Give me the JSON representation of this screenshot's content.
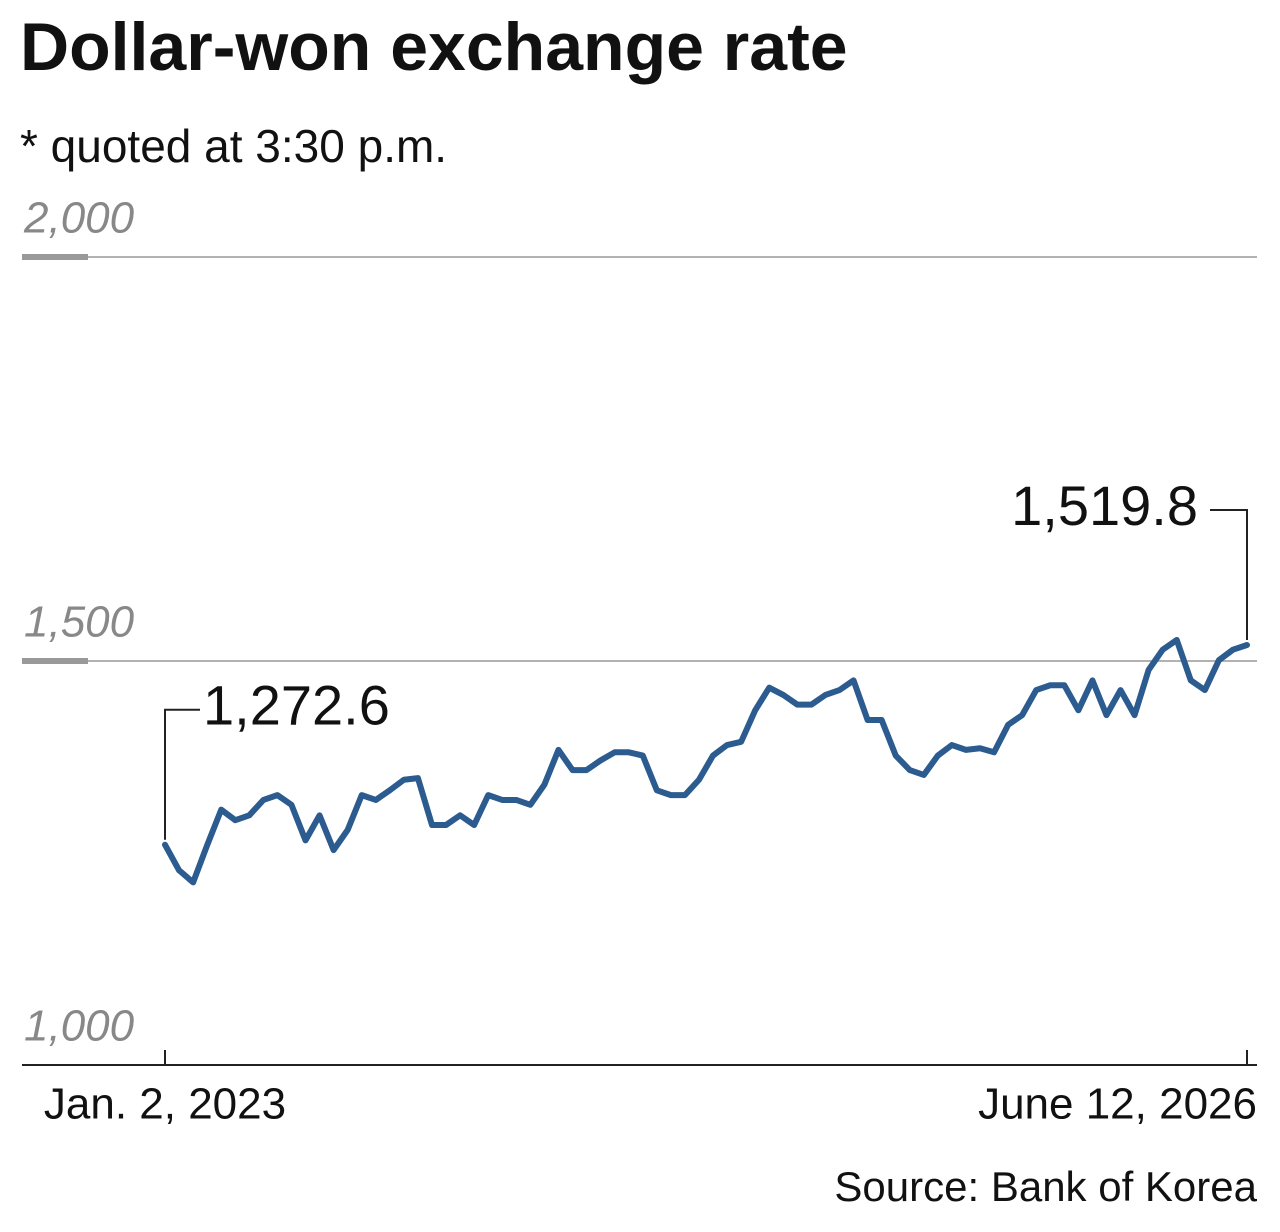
{
  "chart_data": {
    "type": "line",
    "title": "Dollar-won exchange rate",
    "subtitle": "* quoted at 3:30 p.m.",
    "source": "Source: Bank of Korea",
    "color": "#2b5b8f",
    "grid": true,
    "ylim": [
      1000,
      2000
    ],
    "yticks": [
      {
        "value": 1000,
        "label": "1,000"
      },
      {
        "value": 1500,
        "label": "1,500"
      },
      {
        "value": 2000,
        "label": "2,000"
      }
    ],
    "categories": [
      "Jan. 2, 2023",
      null,
      null,
      null,
      null,
      null,
      null,
      null,
      null,
      null,
      null,
      null,
      null,
      null,
      null,
      null,
      null,
      null,
      null,
      null,
      null,
      null,
      null,
      null,
      null,
      null,
      null,
      null,
      null,
      null,
      null,
      null,
      null,
      null,
      null,
      null,
      null,
      null,
      null,
      null,
      null,
      null,
      null,
      null,
      null,
      null,
      null,
      null,
      null,
      null,
      null,
      null,
      null,
      null,
      null,
      null,
      null,
      null,
      null,
      null,
      null,
      null,
      null,
      null,
      null,
      null,
      null,
      null,
      null,
      null,
      null,
      null,
      null,
      null,
      null,
      null,
      null,
      "June 12, 2026"
    ],
    "values": [
      1272.6,
      1241,
      1226,
      1272,
      1316,
      1303,
      1309,
      1328,
      1334,
      1322,
      1278,
      1309,
      1266,
      1291,
      1334,
      1328,
      1340,
      1353,
      1355,
      1297,
      1297,
      1309,
      1297,
      1334,
      1328,
      1328,
      1322,
      1347,
      1390,
      1365,
      1365,
      1377,
      1387,
      1387,
      1383,
      1340,
      1334,
      1334,
      1353,
      1383,
      1396,
      1400,
      1439,
      1467,
      1458,
      1446,
      1446,
      1458,
      1464,
      1476,
      1427,
      1427,
      1383,
      1365,
      1359,
      1383,
      1396,
      1390,
      1392,
      1387,
      1421,
      1433,
      1464,
      1470,
      1470,
      1439,
      1476,
      1433,
      1464,
      1433,
      1489,
      1514,
      1526,
      1476,
      1464,
      1501,
      1514,
      1519.8
    ],
    "value_labels": [
      "1,272.6",
      null,
      null,
      null,
      null,
      null,
      null,
      null,
      null,
      null,
      null,
      null,
      null,
      null,
      null,
      null,
      null,
      null,
      null,
      null,
      null,
      null,
      null,
      null,
      null,
      null,
      null,
      null,
      null,
      null,
      null,
      null,
      null,
      null,
      null,
      null,
      null,
      null,
      null,
      null,
      null,
      null,
      null,
      null,
      null,
      null,
      null,
      null,
      null,
      null,
      null,
      null,
      null,
      null,
      null,
      null,
      null,
      null,
      null,
      null,
      null,
      null,
      null,
      null,
      null,
      null,
      null,
      null,
      null,
      null,
      null,
      null,
      null,
      null,
      null,
      null,
      null,
      "1,519.8"
    ]
  }
}
